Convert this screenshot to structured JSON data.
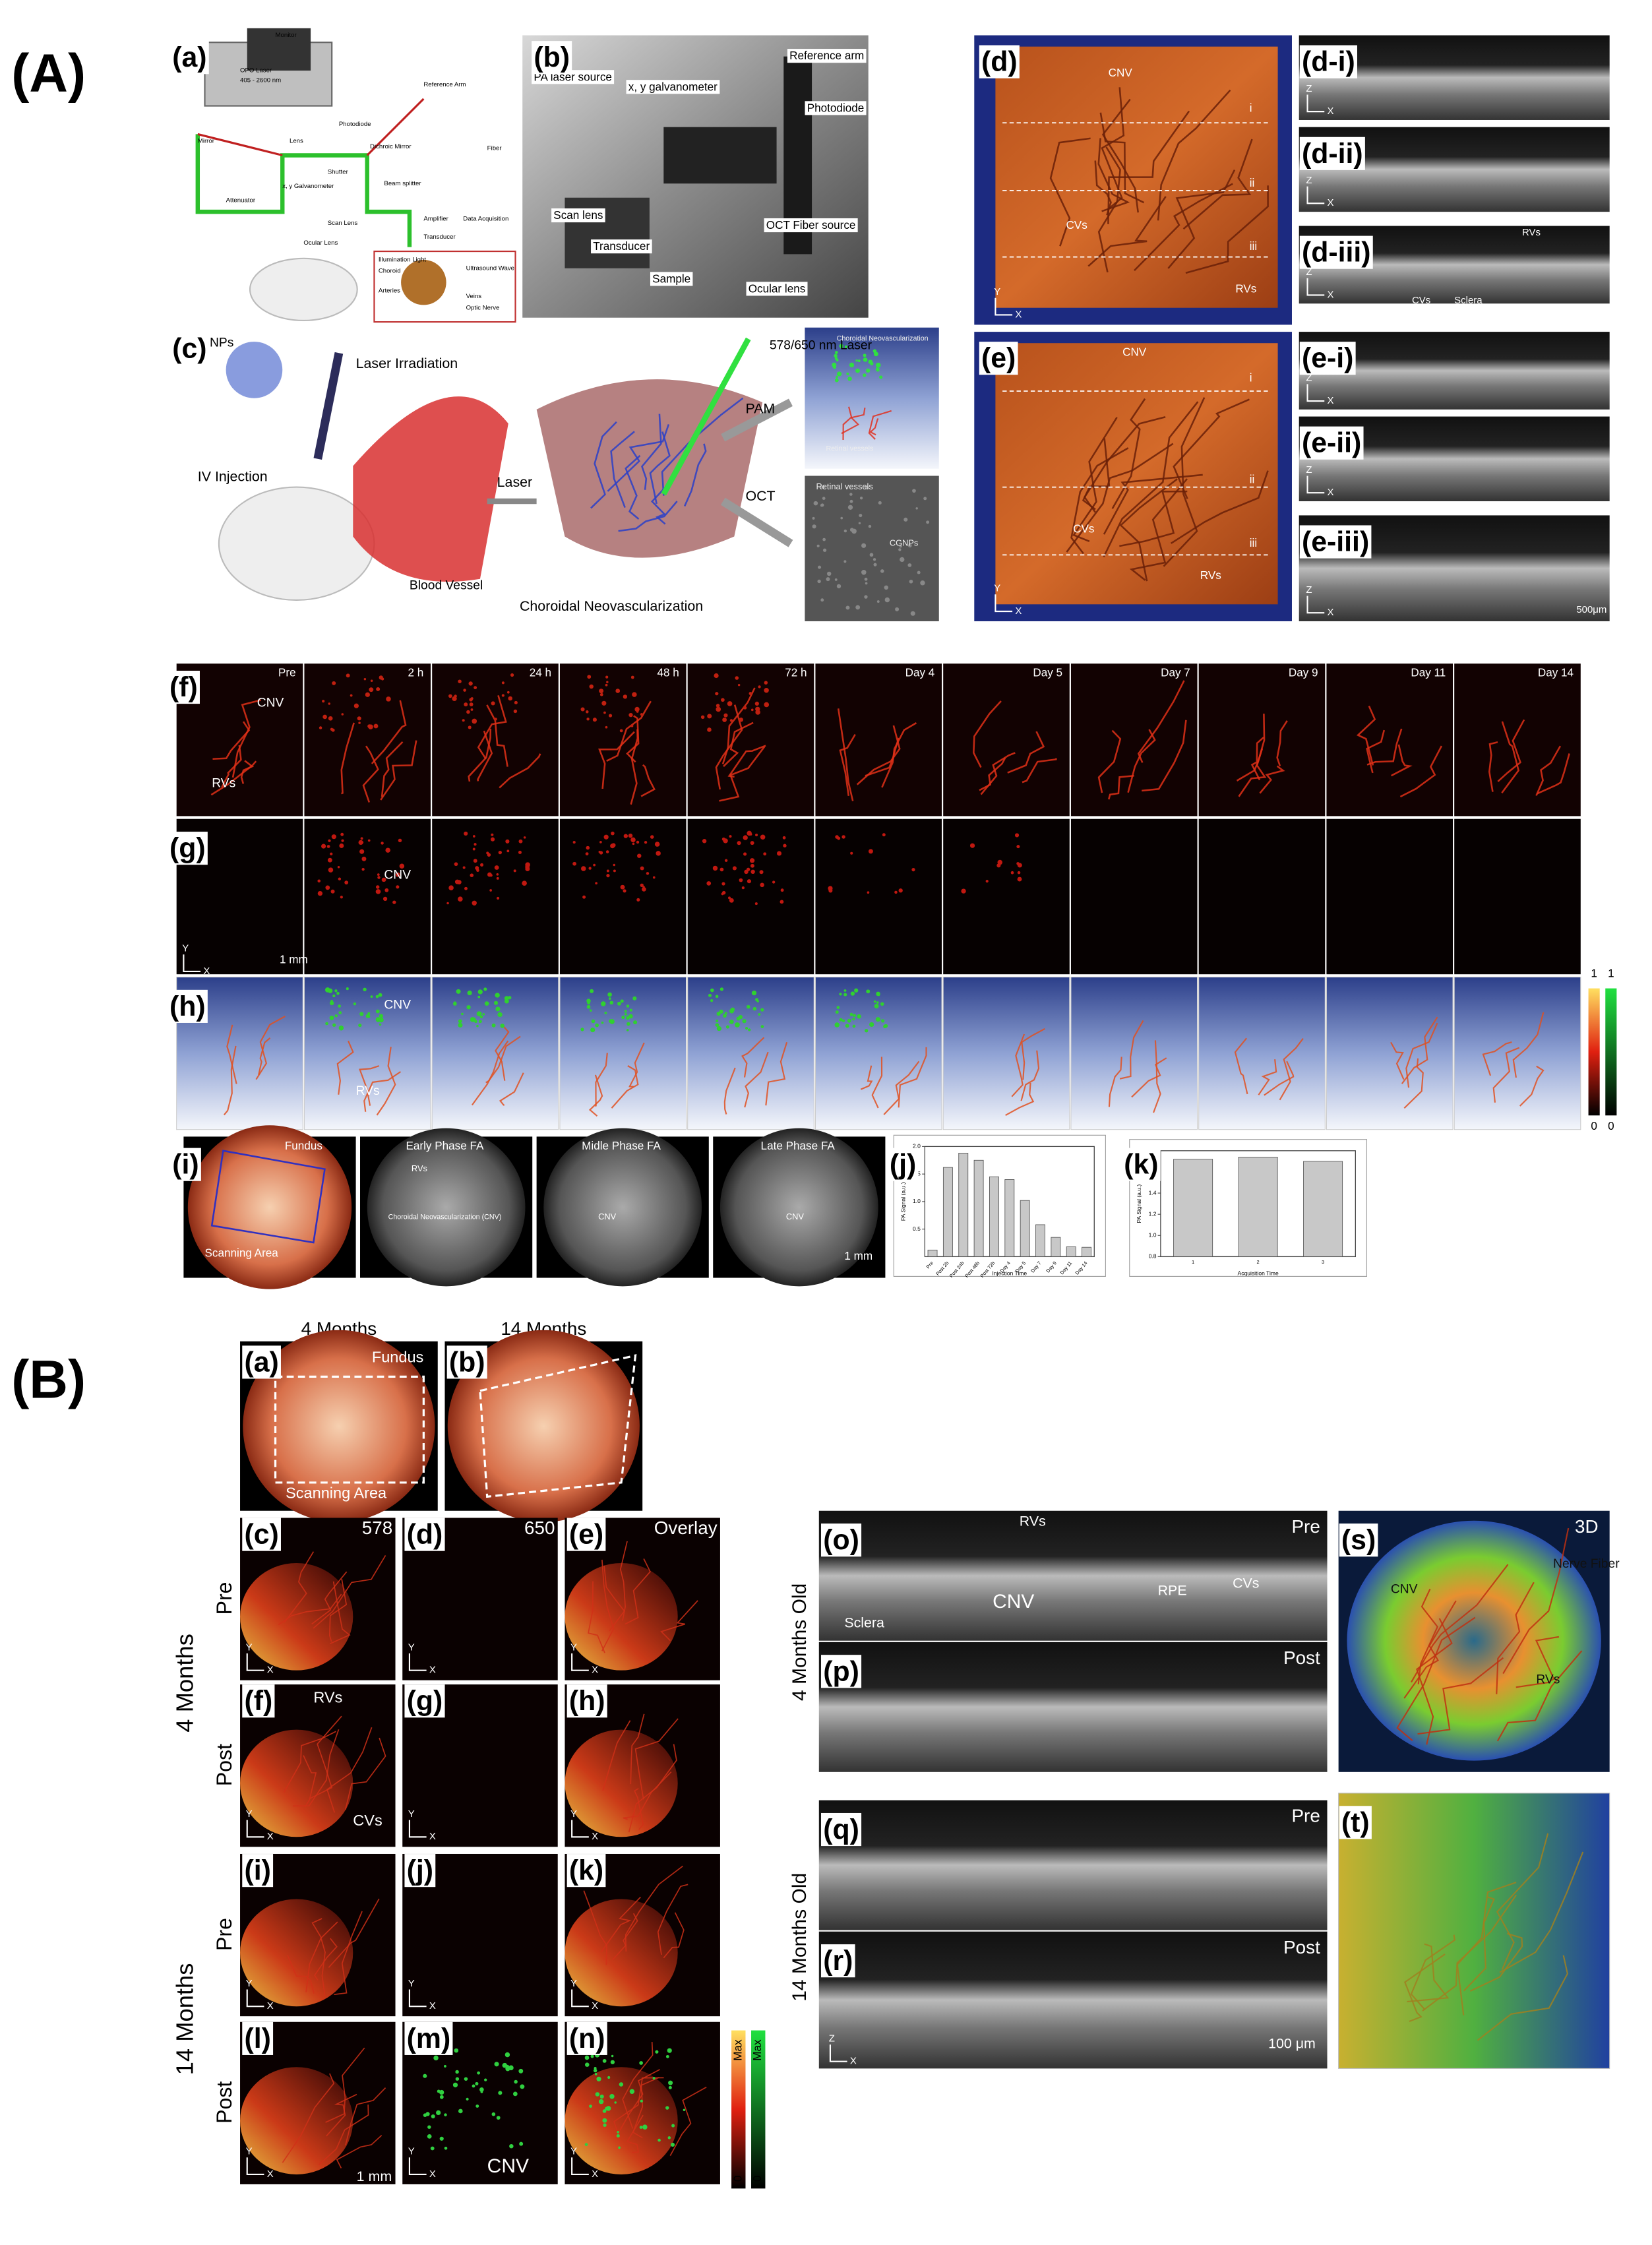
{
  "axes": {
    "x": "X",
    "y": "Y",
    "z": "Z"
  },
  "A": {
    "label": "(A)",
    "a": {
      "label": "(a)",
      "parts": [
        "Monitor",
        "OPO Laser",
        "405 - 2600 nm",
        "Mirror",
        "Lens",
        "Attenuator",
        "Shutter",
        "Photodiode",
        "Dichroic Mirror",
        "Beam splitter",
        "Reference Arm",
        "Fiber",
        "Amplifier",
        "Data Acquisition",
        "Transducer",
        "Ocular Lens",
        "Scan Lens",
        "x, y Galvanometer",
        "Choroid",
        "Arteries",
        "Veins",
        "Optic Nerve",
        "Ultrasound Wave",
        "Illumination Light"
      ]
    },
    "b": {
      "label": "(b)",
      "parts": [
        "PA laser source",
        "x, y galvanometer",
        "Reference arm",
        "Photodiode",
        "Scan lens",
        "Transducer",
        "Sample",
        "Ocular lens",
        "OCT Fiber source"
      ]
    },
    "c": {
      "label": "(c)",
      "parts": [
        "CGNPs",
        "Laser Irradiation",
        "IV Injection",
        "Blood Vessel",
        "Laser",
        "Choroidal Neovascularization",
        "578/650 nm Laser",
        "PAM",
        "OCT",
        "Choroidal Neovascularization",
        "Retinal vessels",
        "Retinal vessels",
        "CGNPs"
      ]
    },
    "d": {
      "label": "(d)",
      "notes": [
        "CNV",
        "CVs",
        "RVs",
        "i",
        "ii",
        "iii"
      ],
      "bscans": [
        "(d-i)",
        "(d-ii)",
        "(d-iii)"
      ],
      "bscan_notes": [
        "RVs",
        "CVs",
        "Sclera"
      ]
    },
    "e": {
      "label": "(e)",
      "notes": [
        "CNV",
        "CVs",
        "RVs",
        "i",
        "ii",
        "iii"
      ],
      "bscans": [
        "(e-i)",
        "(e-ii)",
        "(e-iii)"
      ],
      "scale": "500μm"
    },
    "f": {
      "label": "(f)",
      "times": [
        "Pre",
        "2 h",
        "24 h",
        "48 h",
        "72 h",
        "Day 4",
        "Day 5",
        "Day 7",
        "Day 9",
        "Day 11",
        "Day 14"
      ],
      "notes": [
        "CNV",
        "RVs"
      ]
    },
    "g": {
      "label": "(g)",
      "notes": [
        "CNV"
      ],
      "scale": "1 mm"
    },
    "h": {
      "label": "(h)",
      "notes": [
        "CNV",
        "RVs"
      ],
      "colorbar": [
        "1",
        "1",
        "0",
        "0"
      ]
    },
    "i": {
      "label": "(i)",
      "titles": [
        "Fundus",
        "Early Phase FA",
        "Midle Phase FA",
        "Late Phase FA"
      ],
      "notes": [
        "Scanning Area",
        "RVs",
        "Choroidal Neovascularization (CNV)",
        "CNV",
        "CNV"
      ],
      "scale": "1 mm"
    },
    "j": {
      "label": "(j)",
      "type": "bar",
      "color": "#c8c8c8",
      "xlabel": "Injection Time",
      "ylabel": "PA Signal (a.u.)",
      "categories": [
        "Pre",
        "Post 2h",
        "Post 24h",
        "Post 48h",
        "Post 72h",
        "Day 4",
        "Day 5",
        "Day 7",
        "Day 9",
        "Day 11",
        "Day 14"
      ],
      "values": [
        0.12,
        1.62,
        1.88,
        1.75,
        1.45,
        1.4,
        1.02,
        0.58,
        0.35,
        0.18,
        0.17
      ],
      "ylim": [
        0,
        2
      ],
      "yticks": [
        0.5,
        {
          "value": 1,
          "label": "1.0"
        },
        1.5,
        {
          "value": 2,
          "label": "2.0"
        }
      ]
    },
    "k": {
      "label": "(k)",
      "type": "bar",
      "color": "#c8c8c8",
      "xlabel": "Acquisition Time",
      "ylabel": "PA Signal (a.u.)",
      "categories": [
        "1",
        "2",
        "3"
      ],
      "values": [
        1.72,
        1.74,
        1.7
      ],
      "ylim": [
        0.8,
        1.8
      ],
      "yticks": [
        0.8,
        {
          "value": 1,
          "label": "1.0"
        },
        1.2,
        1.4,
        1.6,
        1.8
      ]
    }
  },
  "B": {
    "label": "(B)",
    "ages": [
      "4 Months",
      "14 Months"
    ],
    "a": {
      "label": "(a)",
      "notes": [
        "Fundus",
        "Scanning Area"
      ]
    },
    "b": {
      "label": "(b)"
    },
    "grid": {
      "columns": [
        "578",
        "650",
        "Overlay"
      ],
      "labels": [
        "(c)",
        "(d)",
        "(e)",
        "(f)",
        "(g)",
        "(h)",
        "(i)",
        "(j)",
        "(k)",
        "(l)",
        "(m)",
        "(n)"
      ],
      "rows": [
        "Pre",
        "Post",
        "Pre",
        "Post"
      ],
      "groups": [
        "4 Months",
        "14 Months"
      ],
      "notes": [
        "RVs",
        "CVs",
        "CNV"
      ],
      "scale": "1 mm",
      "colorbar": [
        "Max",
        "Max",
        "0",
        "0"
      ]
    },
    "oct": {
      "labels": [
        "(o)",
        "(p)",
        "(q)",
        "(r)"
      ],
      "states": [
        "Pre",
        "Post",
        "Pre",
        "Post"
      ],
      "groups": [
        "4 Months Old",
        "14 Months Old"
      ],
      "notes": [
        "RVs",
        "CNV",
        "RPE",
        "CVs",
        "Sclera"
      ],
      "scale": "100 μm"
    },
    "s": {
      "label": "(s)",
      "tag": "3D",
      "notes": [
        "CNV",
        "Nerve Fiber",
        "RVs"
      ]
    },
    "t": {
      "label": "(t)"
    }
  }
}
